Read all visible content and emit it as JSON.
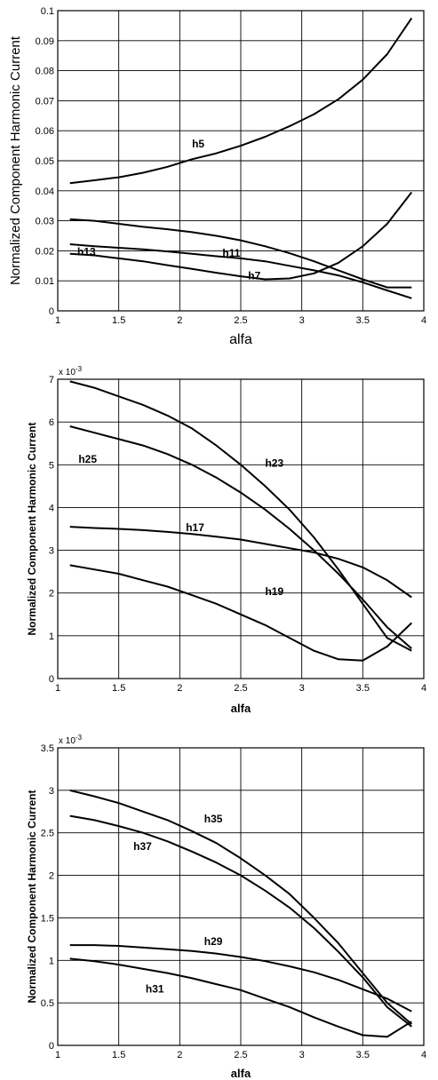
{
  "chart_data": [
    {
      "type": "line",
      "xlabel": "alfa",
      "ylabel": "Normalized Component Harmonic Current",
      "xlim": [
        1,
        4
      ],
      "ylim": [
        0,
        0.1
      ],
      "xticks": [
        "1",
        "1.5",
        "2",
        "2.5",
        "3",
        "3.5",
        "4"
      ],
      "yticks": [
        "0",
        "0.01",
        "0.02",
        "0.03",
        "0.04",
        "0.05",
        "0.06",
        "0.07",
        "0.08",
        "0.09",
        "0.1"
      ],
      "grid": true,
      "series": [
        {
          "name": "h5",
          "x": [
            1.1,
            1.3,
            1.5,
            1.7,
            1.9,
            2.1,
            2.3,
            2.5,
            2.7,
            2.9,
            3.1,
            3.3,
            3.5,
            3.7,
            3.9
          ],
          "values": [
            0.0425,
            0.0435,
            0.0445,
            0.046,
            0.048,
            0.0505,
            0.0525,
            0.055,
            0.058,
            0.0615,
            0.0655,
            0.0705,
            0.077,
            0.0855,
            0.0975
          ]
        },
        {
          "name": "h7",
          "x": [
            1.1,
            1.3,
            1.5,
            1.7,
            1.9,
            2.1,
            2.3,
            2.5,
            2.7,
            2.9,
            3.1,
            3.3,
            3.5,
            3.7,
            3.9
          ],
          "values": [
            0.019,
            0.0185,
            0.0175,
            0.0165,
            0.0152,
            0.014,
            0.0127,
            0.0115,
            0.0105,
            0.0108,
            0.0125,
            0.016,
            0.0215,
            0.029,
            0.0395
          ]
        },
        {
          "name": "h11",
          "x": [
            1.1,
            1.3,
            1.5,
            1.7,
            1.9,
            2.1,
            2.3,
            2.5,
            2.7,
            2.9,
            3.1,
            3.3,
            3.5,
            3.7,
            3.9
          ],
          "values": [
            0.0305,
            0.03,
            0.029,
            0.028,
            0.0272,
            0.0262,
            0.025,
            0.0235,
            0.0215,
            0.0192,
            0.0165,
            0.0135,
            0.0105,
            0.0078,
            0.0078
          ]
        },
        {
          "name": "h13",
          "x": [
            1.1,
            1.3,
            1.5,
            1.7,
            1.9,
            2.1,
            2.3,
            2.5,
            2.7,
            2.9,
            3.1,
            3.3,
            3.5,
            3.7,
            3.9
          ],
          "values": [
            0.0222,
            0.0215,
            0.021,
            0.0205,
            0.0198,
            0.019,
            0.0182,
            0.0175,
            0.0165,
            0.015,
            0.0135,
            0.0118,
            0.0095,
            0.0068,
            0.0042
          ]
        }
      ]
    },
    {
      "type": "line",
      "xlabel": "alfa",
      "ylabel": "Normalized Component Harmonic Current",
      "multiplier": "x 10-3",
      "xlim": [
        1,
        4
      ],
      "ylim": [
        0,
        7
      ],
      "xticks": [
        "1",
        "1.5",
        "2",
        "2.5",
        "3",
        "3.5",
        "4"
      ],
      "yticks": [
        "0",
        "1",
        "2",
        "3",
        "4",
        "5",
        "6",
        "7"
      ],
      "grid": true,
      "series": [
        {
          "name": "h23",
          "x": [
            1.1,
            1.3,
            1.5,
            1.7,
            1.9,
            2.1,
            2.3,
            2.5,
            2.7,
            2.9,
            3.1,
            3.3,
            3.5,
            3.7,
            3.9
          ],
          "values": [
            6.95,
            6.8,
            6.6,
            6.4,
            6.15,
            5.85,
            5.45,
            5.0,
            4.5,
            3.95,
            3.3,
            2.55,
            1.75,
            0.95,
            0.65
          ]
        },
        {
          "name": "h25",
          "x": [
            1.1,
            1.3,
            1.5,
            1.7,
            1.9,
            2.1,
            2.3,
            2.5,
            2.7,
            2.9,
            3.1,
            3.3,
            3.5,
            3.7,
            3.9
          ],
          "values": [
            5.9,
            5.75,
            5.6,
            5.45,
            5.25,
            5.0,
            4.7,
            4.35,
            3.95,
            3.5,
            3.0,
            2.45,
            1.85,
            1.2,
            0.7
          ]
        },
        {
          "name": "h17",
          "x": [
            1.1,
            1.3,
            1.5,
            1.7,
            1.9,
            2.1,
            2.3,
            2.5,
            2.7,
            2.9,
            3.1,
            3.3,
            3.5,
            3.7,
            3.9
          ],
          "values": [
            3.55,
            3.52,
            3.5,
            3.47,
            3.43,
            3.38,
            3.32,
            3.25,
            3.15,
            3.05,
            2.95,
            2.8,
            2.6,
            2.3,
            1.9
          ]
        },
        {
          "name": "h19",
          "x": [
            1.1,
            1.3,
            1.5,
            1.7,
            1.9,
            2.1,
            2.3,
            2.5,
            2.7,
            2.9,
            3.1,
            3.3,
            3.5,
            3.7,
            3.9
          ],
          "values": [
            2.65,
            2.55,
            2.45,
            2.3,
            2.15,
            1.95,
            1.75,
            1.5,
            1.25,
            0.95,
            0.65,
            0.45,
            0.42,
            0.75,
            1.3
          ]
        }
      ]
    },
    {
      "type": "line",
      "xlabel": "alfa",
      "ylabel": "Normalized Component Harmonic Current",
      "multiplier": "x 10-3",
      "xlim": [
        1,
        4
      ],
      "ylim": [
        0,
        3.5
      ],
      "xticks": [
        "1",
        "1.5",
        "2",
        "2.5",
        "3",
        "3.5",
        "4"
      ],
      "yticks": [
        "0",
        "0.5",
        "1",
        "1.5",
        "2",
        "2.5",
        "3",
        "3.5"
      ],
      "grid": true,
      "series": [
        {
          "name": "h35",
          "x": [
            1.1,
            1.3,
            1.5,
            1.7,
            1.9,
            2.1,
            2.3,
            2.5,
            2.7,
            2.9,
            3.1,
            3.3,
            3.5,
            3.7,
            3.9
          ],
          "values": [
            3.0,
            2.93,
            2.85,
            2.75,
            2.65,
            2.52,
            2.38,
            2.2,
            2.0,
            1.78,
            1.5,
            1.2,
            0.85,
            0.5,
            0.25
          ]
        },
        {
          "name": "h37",
          "x": [
            1.1,
            1.3,
            1.5,
            1.7,
            1.9,
            2.1,
            2.3,
            2.5,
            2.7,
            2.9,
            3.1,
            3.3,
            3.5,
            3.7,
            3.9
          ],
          "values": [
            2.7,
            2.65,
            2.58,
            2.5,
            2.4,
            2.28,
            2.15,
            2.0,
            1.82,
            1.62,
            1.38,
            1.1,
            0.8,
            0.45,
            0.22
          ]
        },
        {
          "name": "h29",
          "x": [
            1.1,
            1.3,
            1.5,
            1.7,
            1.9,
            2.1,
            2.3,
            2.5,
            2.7,
            2.9,
            3.1,
            3.3,
            3.5,
            3.7,
            3.9
          ],
          "values": [
            1.18,
            1.18,
            1.17,
            1.15,
            1.13,
            1.11,
            1.08,
            1.04,
            0.99,
            0.93,
            0.86,
            0.77,
            0.66,
            0.55,
            0.4
          ]
        },
        {
          "name": "h31",
          "x": [
            1.1,
            1.3,
            1.5,
            1.7,
            1.9,
            2.1,
            2.3,
            2.5,
            2.7,
            2.9,
            3.1,
            3.3,
            3.5,
            3.7,
            3.9
          ],
          "values": [
            1.02,
            0.99,
            0.95,
            0.9,
            0.85,
            0.79,
            0.72,
            0.65,
            0.55,
            0.45,
            0.33,
            0.22,
            0.12,
            0.1,
            0.28
          ]
        }
      ]
    }
  ]
}
